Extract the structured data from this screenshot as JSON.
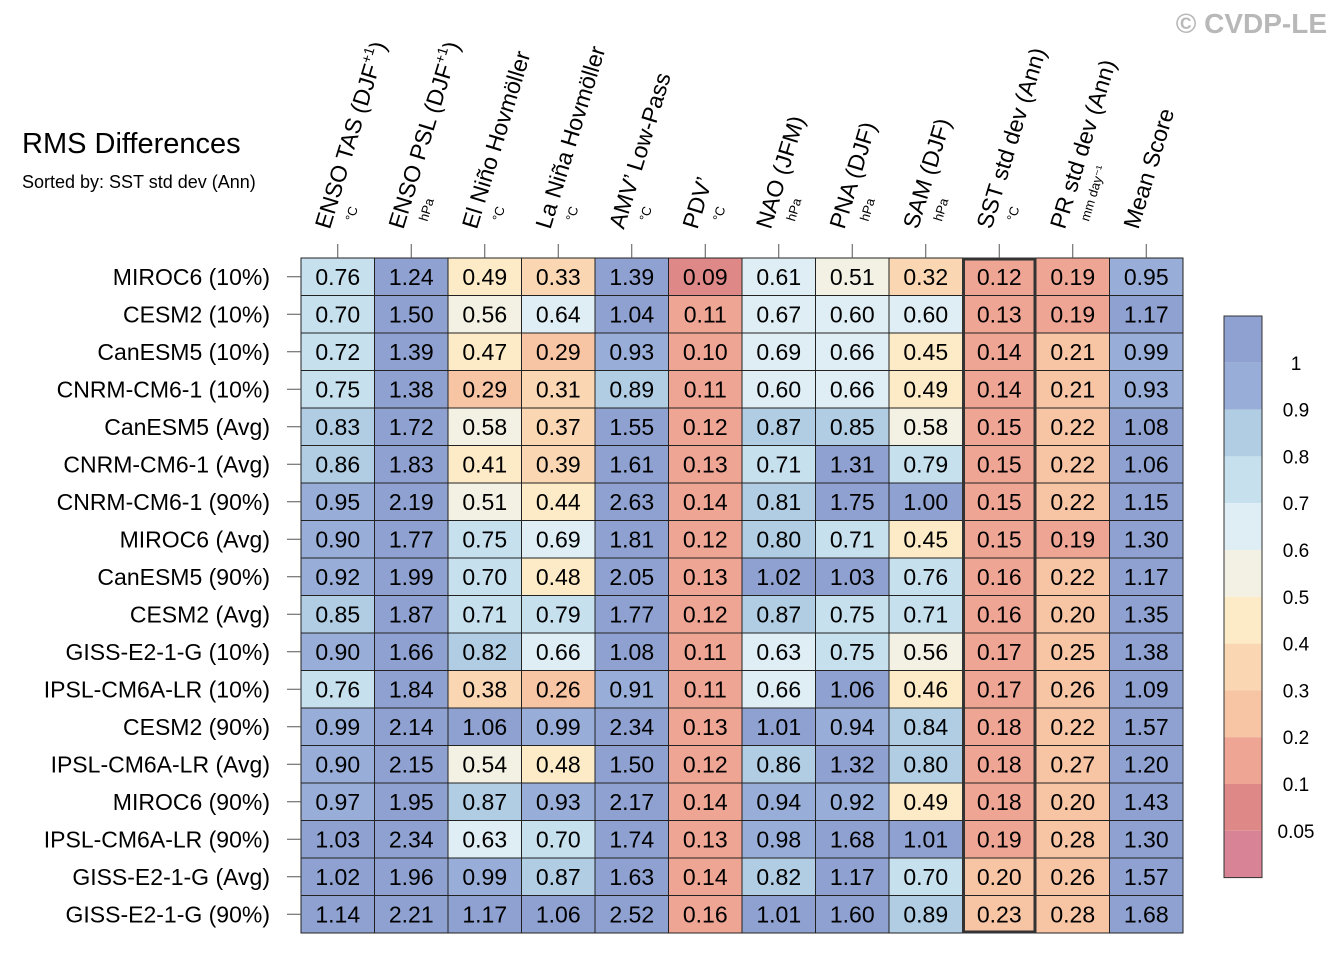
{
  "watermark": "© CVDP-LE",
  "title": "RMS Differences",
  "subtitle": "Sorted by: SST std dev (Ann)",
  "chart_data": {
    "type": "heatmap",
    "columns": [
      {
        "label": "ENSO TAS (DJF",
        "sup": "+1",
        "close": ")",
        "unit": "°C"
      },
      {
        "label": "ENSO PSL (DJF",
        "sup": "+1",
        "close": ")",
        "unit": "hPa"
      },
      {
        "label": "El Niño Hovmöller",
        "sup": "",
        "close": "",
        "unit": "°C"
      },
      {
        "label": "La Niña Hovmöller",
        "sup": "",
        "close": "",
        "unit": "°C"
      },
      {
        "label": "AMV’ Low-Pass",
        "sup": "",
        "close": "",
        "unit": "°C"
      },
      {
        "label": "PDV’",
        "sup": "",
        "close": "",
        "unit": "°C"
      },
      {
        "label": "NAO (JFM)",
        "sup": "",
        "close": "",
        "unit": "hPa"
      },
      {
        "label": "PNA (DJF)",
        "sup": "",
        "close": "",
        "unit": "hPa"
      },
      {
        "label": "SAM (DJF)",
        "sup": "",
        "close": "",
        "unit": "hPa"
      },
      {
        "label": "SST std dev (Ann)",
        "sup": "",
        "close": "",
        "unit": "°C"
      },
      {
        "label": "PR std dev (Ann)",
        "sup": "",
        "close": "",
        "unit": "mm day⁻¹"
      },
      {
        "label": "Mean Score",
        "sup": "",
        "close": "",
        "unit": ""
      }
    ],
    "rows": [
      "MIROC6 (10%)",
      "CESM2 (10%)",
      "CanESM5 (10%)",
      "CNRM-CM6-1 (10%)",
      "CanESM5 (Avg)",
      "CNRM-CM6-1 (Avg)",
      "CNRM-CM6-1 (90%)",
      "MIROC6 (Avg)",
      "CanESM5 (90%)",
      "CESM2 (Avg)",
      "GISS-E2-1-G (10%)",
      "IPSL-CM6A-LR (10%)",
      "CESM2 (90%)",
      "IPSL-CM6A-LR (Avg)",
      "MIROC6 (90%)",
      "IPSL-CM6A-LR (90%)",
      "GISS-E2-1-G (Avg)",
      "GISS-E2-1-G (90%)"
    ],
    "values": [
      [
        "0.76",
        "1.24",
        "0.49",
        "0.33",
        "1.39",
        "0.09",
        "0.61",
        "0.51",
        "0.32",
        "0.12",
        "0.19",
        "0.95"
      ],
      [
        "0.70",
        "1.50",
        "0.56",
        "0.64",
        "1.04",
        "0.11",
        "0.67",
        "0.60",
        "0.60",
        "0.13",
        "0.19",
        "1.17"
      ],
      [
        "0.72",
        "1.39",
        "0.47",
        "0.29",
        "0.93",
        "0.10",
        "0.69",
        "0.66",
        "0.45",
        "0.14",
        "0.21",
        "0.99"
      ],
      [
        "0.75",
        "1.38",
        "0.29",
        "0.31",
        "0.89",
        "0.11",
        "0.60",
        "0.66",
        "0.49",
        "0.14",
        "0.21",
        "0.93"
      ],
      [
        "0.83",
        "1.72",
        "0.58",
        "0.37",
        "1.55",
        "0.12",
        "0.87",
        "0.85",
        "0.58",
        "0.15",
        "0.22",
        "1.08"
      ],
      [
        "0.86",
        "1.83",
        "0.41",
        "0.39",
        "1.61",
        "0.13",
        "0.71",
        "1.31",
        "0.79",
        "0.15",
        "0.22",
        "1.06"
      ],
      [
        "0.95",
        "2.19",
        "0.51",
        "0.44",
        "2.63",
        "0.14",
        "0.81",
        "1.75",
        "1.00",
        "0.15",
        "0.22",
        "1.15"
      ],
      [
        "0.90",
        "1.77",
        "0.75",
        "0.69",
        "1.81",
        "0.12",
        "0.80",
        "0.71",
        "0.45",
        "0.15",
        "0.19",
        "1.30"
      ],
      [
        "0.92",
        "1.99",
        "0.70",
        "0.48",
        "2.05",
        "0.13",
        "1.02",
        "1.03",
        "0.76",
        "0.16",
        "0.22",
        "1.17"
      ],
      [
        "0.85",
        "1.87",
        "0.71",
        "0.79",
        "1.77",
        "0.12",
        "0.87",
        "0.75",
        "0.71",
        "0.16",
        "0.20",
        "1.35"
      ],
      [
        "0.90",
        "1.66",
        "0.82",
        "0.66",
        "1.08",
        "0.11",
        "0.63",
        "0.75",
        "0.56",
        "0.17",
        "0.25",
        "1.38"
      ],
      [
        "0.76",
        "1.84",
        "0.38",
        "0.26",
        "0.91",
        "0.11",
        "0.66",
        "1.06",
        "0.46",
        "0.17",
        "0.26",
        "1.09"
      ],
      [
        "0.99",
        "2.14",
        "1.06",
        "0.99",
        "2.34",
        "0.13",
        "1.01",
        "0.94",
        "0.84",
        "0.18",
        "0.22",
        "1.57"
      ],
      [
        "0.90",
        "2.15",
        "0.54",
        "0.48",
        "1.50",
        "0.12",
        "0.86",
        "1.32",
        "0.80",
        "0.18",
        "0.27",
        "1.20"
      ],
      [
        "0.97",
        "1.95",
        "0.87",
        "0.93",
        "2.17",
        "0.14",
        "0.94",
        "0.92",
        "0.49",
        "0.18",
        "0.20",
        "1.43"
      ],
      [
        "1.03",
        "2.34",
        "0.63",
        "0.70",
        "1.74",
        "0.13",
        "0.98",
        "1.68",
        "1.01",
        "0.19",
        "0.28",
        "1.30"
      ],
      [
        "1.02",
        "1.96",
        "0.99",
        "0.87",
        "1.63",
        "0.14",
        "0.82",
        "1.17",
        "0.70",
        "0.20",
        "0.26",
        "1.57"
      ],
      [
        "1.14",
        "2.21",
        "1.17",
        "1.06",
        "2.52",
        "0.16",
        "1.01",
        "1.60",
        "0.89",
        "0.23",
        "0.28",
        "1.68"
      ]
    ],
    "highlight_column": 9,
    "colorbar": {
      "labels": [
        "1",
        "0.9",
        "0.8",
        "0.7",
        "0.6",
        "0.5",
        "0.4",
        "0.3",
        "0.2",
        "0.1",
        "0.05"
      ],
      "bounds": [
        0.05,
        0.1,
        0.2,
        0.3,
        0.4,
        0.5,
        0.6,
        0.7,
        0.8,
        0.9,
        1
      ],
      "colors": [
        "#d88496",
        "#df8888",
        "#efa594",
        "#f7c4a4",
        "#fad7b2",
        "#fcebc6",
        "#f3f1e4",
        "#dfeef5",
        "#c7e0ee",
        "#b0cde3",
        "#98aed8",
        "#8ea1d0"
      ]
    }
  }
}
